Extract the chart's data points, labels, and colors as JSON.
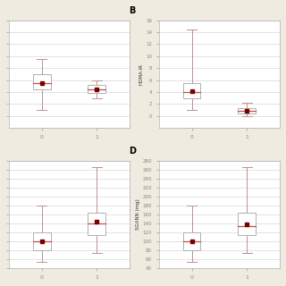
{
  "background_color": "#f0ebe0",
  "plot_background": "#ffffff",
  "grid_color": "#d8d8d8",
  "box_edgecolor": "#b0b0b0",
  "whisker_color": "#c09090",
  "mean_color": "#7a0000",
  "median_color": "#c05050",
  "figsize": [
    3.2,
    3.2
  ],
  "dpi": 100,
  "panels": [
    {
      "label": "",
      "ylabel": "",
      "show_yticks": false,
      "boxes": [
        {
          "x": 0,
          "q1": 4.5,
          "median": 5.5,
          "q3": 7.0,
          "mean": 5.5,
          "whisker_low": 1.0,
          "whisker_high": 9.5
        },
        {
          "x": 1,
          "q1": 3.8,
          "median": 4.5,
          "q3": 5.2,
          "mean": 4.5,
          "whisker_low": 3.0,
          "whisker_high": 6.0
        }
      ],
      "ylim": [
        -2,
        16
      ],
      "yticks": [
        0,
        2,
        4,
        6,
        8,
        10,
        12,
        14,
        16
      ]
    },
    {
      "label": "B",
      "ylabel": "HOMA-IR",
      "show_yticks": true,
      "boxes": [
        {
          "x": 0,
          "q1": 3.0,
          "median": 4.0,
          "q3": 5.5,
          "mean": 4.2,
          "whisker_low": 1.0,
          "whisker_high": 14.5
        },
        {
          "x": 1,
          "q1": 0.4,
          "median": 0.8,
          "q3": 1.3,
          "mean": 0.9,
          "whisker_low": 0.0,
          "whisker_high": 2.2
        }
      ],
      "ylim": [
        -2,
        16
      ],
      "yticks": [
        0,
        2,
        4,
        6,
        8,
        10,
        12,
        14,
        16
      ]
    },
    {
      "label": "",
      "ylabel": "",
      "show_yticks": false,
      "boxes": [
        {
          "x": 0,
          "q1": 80,
          "median": 100,
          "q3": 120,
          "mean": 100,
          "whisker_low": 55,
          "whisker_high": 180
        },
        {
          "x": 1,
          "q1": 115,
          "median": 140,
          "q3": 165,
          "mean": 145,
          "whisker_low": 75,
          "whisker_high": 265
        }
      ],
      "ylim": [
        40,
        280
      ],
      "yticks": [
        40,
        60,
        80,
        100,
        120,
        140,
        160,
        180,
        200,
        220,
        240,
        260,
        280
      ]
    },
    {
      "label": "D",
      "ylabel": "SGANN (mg)",
      "show_yticks": true,
      "boxes": [
        {
          "x": 0,
          "q1": 80,
          "median": 100,
          "q3": 120,
          "mean": 100,
          "whisker_low": 55,
          "whisker_high": 180
        },
        {
          "x": 1,
          "q1": 115,
          "median": 135,
          "q3": 165,
          "mean": 138,
          "whisker_low": 75,
          "whisker_high": 265
        }
      ],
      "ylim": [
        40,
        280
      ],
      "yticks": [
        40,
        60,
        80,
        100,
        120,
        140,
        160,
        180,
        200,
        220,
        240,
        260,
        280
      ]
    }
  ]
}
